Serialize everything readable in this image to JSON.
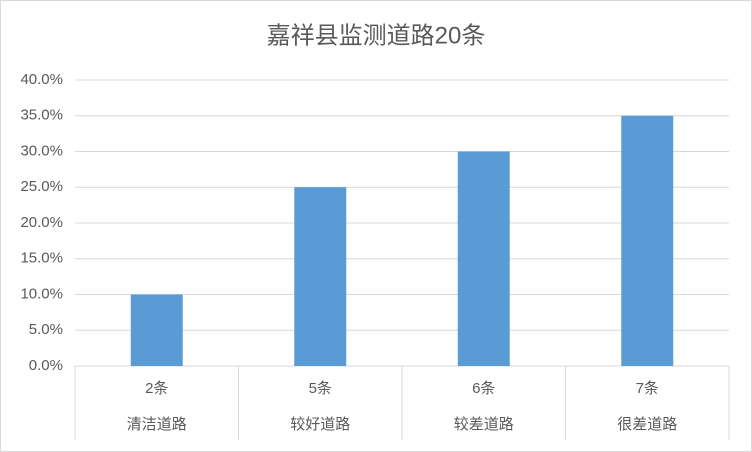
{
  "chart_data": {
    "type": "bar",
    "title": "嘉祥县监测道路20条",
    "categories": [
      "2条",
      "5条",
      "6条",
      "7条"
    ],
    "category_names": [
      "清洁道路",
      "较好道路",
      "较差道路",
      "很差道路"
    ],
    "values": [
      10,
      25,
      30,
      35
    ],
    "color": "#5b9bd5",
    "ylim": [
      0,
      40
    ],
    "yticks": [
      {
        "value": 0,
        "label": "0.0%"
      },
      {
        "value": 5,
        "label": "5.0%"
      },
      {
        "value": 10,
        "label": "10.0%"
      },
      {
        "value": 15,
        "label": "15.0%"
      },
      {
        "value": 20,
        "label": "20.0%"
      },
      {
        "value": 25,
        "label": "25.0%"
      },
      {
        "value": 30,
        "label": "30.0%"
      },
      {
        "value": 35,
        "label": "35.0%"
      },
      {
        "value": 40,
        "label": "40.0%"
      }
    ],
    "grid": true
  }
}
